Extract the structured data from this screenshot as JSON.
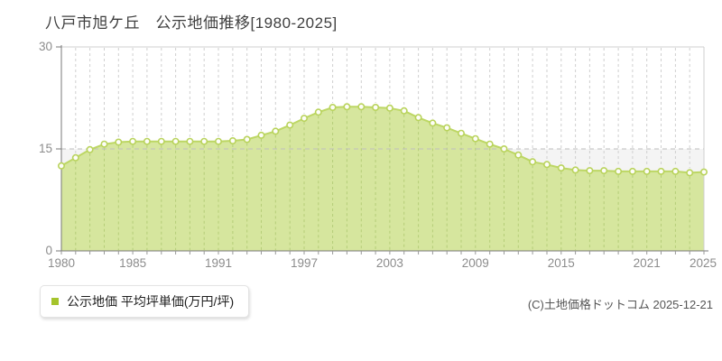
{
  "title": "八戸市旭ケ丘　公示地価推移[1980-2025]",
  "legend": {
    "label": "公示地価 平均坪単価(万円/坪)"
  },
  "copyright": "(C)土地価格ドットコム 2025-12-21",
  "chart_data": {
    "type": "area",
    "title": "八戸市旭ケ丘　公示地価推移[1980-2025]",
    "xlabel": "",
    "ylabel": "平均坪単価(万円/坪)",
    "ylim": [
      0,
      30
    ],
    "yticks": [
      0,
      15,
      30
    ],
    "xticks": [
      1980,
      1985,
      1991,
      1997,
      2003,
      2009,
      2015,
      2021,
      2025
    ],
    "grid": "vertical dashed line per year; horizontal dashed line at 15; light band below 15",
    "legend_position": "bottom-left",
    "x": [
      1980,
      1981,
      1982,
      1983,
      1984,
      1985,
      1986,
      1987,
      1988,
      1989,
      1990,
      1991,
      1992,
      1993,
      1994,
      1995,
      1996,
      1997,
      1998,
      1999,
      2000,
      2001,
      2002,
      2003,
      2004,
      2005,
      2006,
      2007,
      2008,
      2009,
      2010,
      2011,
      2012,
      2013,
      2014,
      2015,
      2016,
      2017,
      2018,
      2019,
      2020,
      2021,
      2022,
      2023,
      2024,
      2025
    ],
    "series": [
      {
        "name": "公示地価 平均坪単価(万円/坪)",
        "values": [
          12.5,
          13.7,
          14.9,
          15.7,
          16.0,
          16.1,
          16.1,
          16.1,
          16.1,
          16.1,
          16.1,
          16.1,
          16.2,
          16.4,
          17.0,
          17.6,
          18.5,
          19.5,
          20.4,
          21.1,
          21.2,
          21.2,
          21.1,
          21.0,
          20.6,
          19.6,
          18.8,
          18.1,
          17.3,
          16.5,
          15.7,
          15.0,
          14.1,
          13.1,
          12.7,
          12.2,
          11.9,
          11.8,
          11.8,
          11.7,
          11.7,
          11.7,
          11.7,
          11.7,
          11.5,
          11.6
        ]
      }
    ]
  },
  "colors": {
    "area_fill": "#d6e69e",
    "line": "#bdd765",
    "marker_fill": "#fdfdf8",
    "marker_stroke": "#b9d35c",
    "grid": "#cfcfcf",
    "grid_inside_fill": "#b5cd78",
    "hgrid_15": "#bdbdbd",
    "band_below_15": "#f4f4f4",
    "axis": "#787878",
    "tick": "#999999",
    "tick_label": "#8c8c8c",
    "title": "#3f3f3f",
    "legend_bullet": "#a5c42c",
    "copyright": "#555555"
  }
}
